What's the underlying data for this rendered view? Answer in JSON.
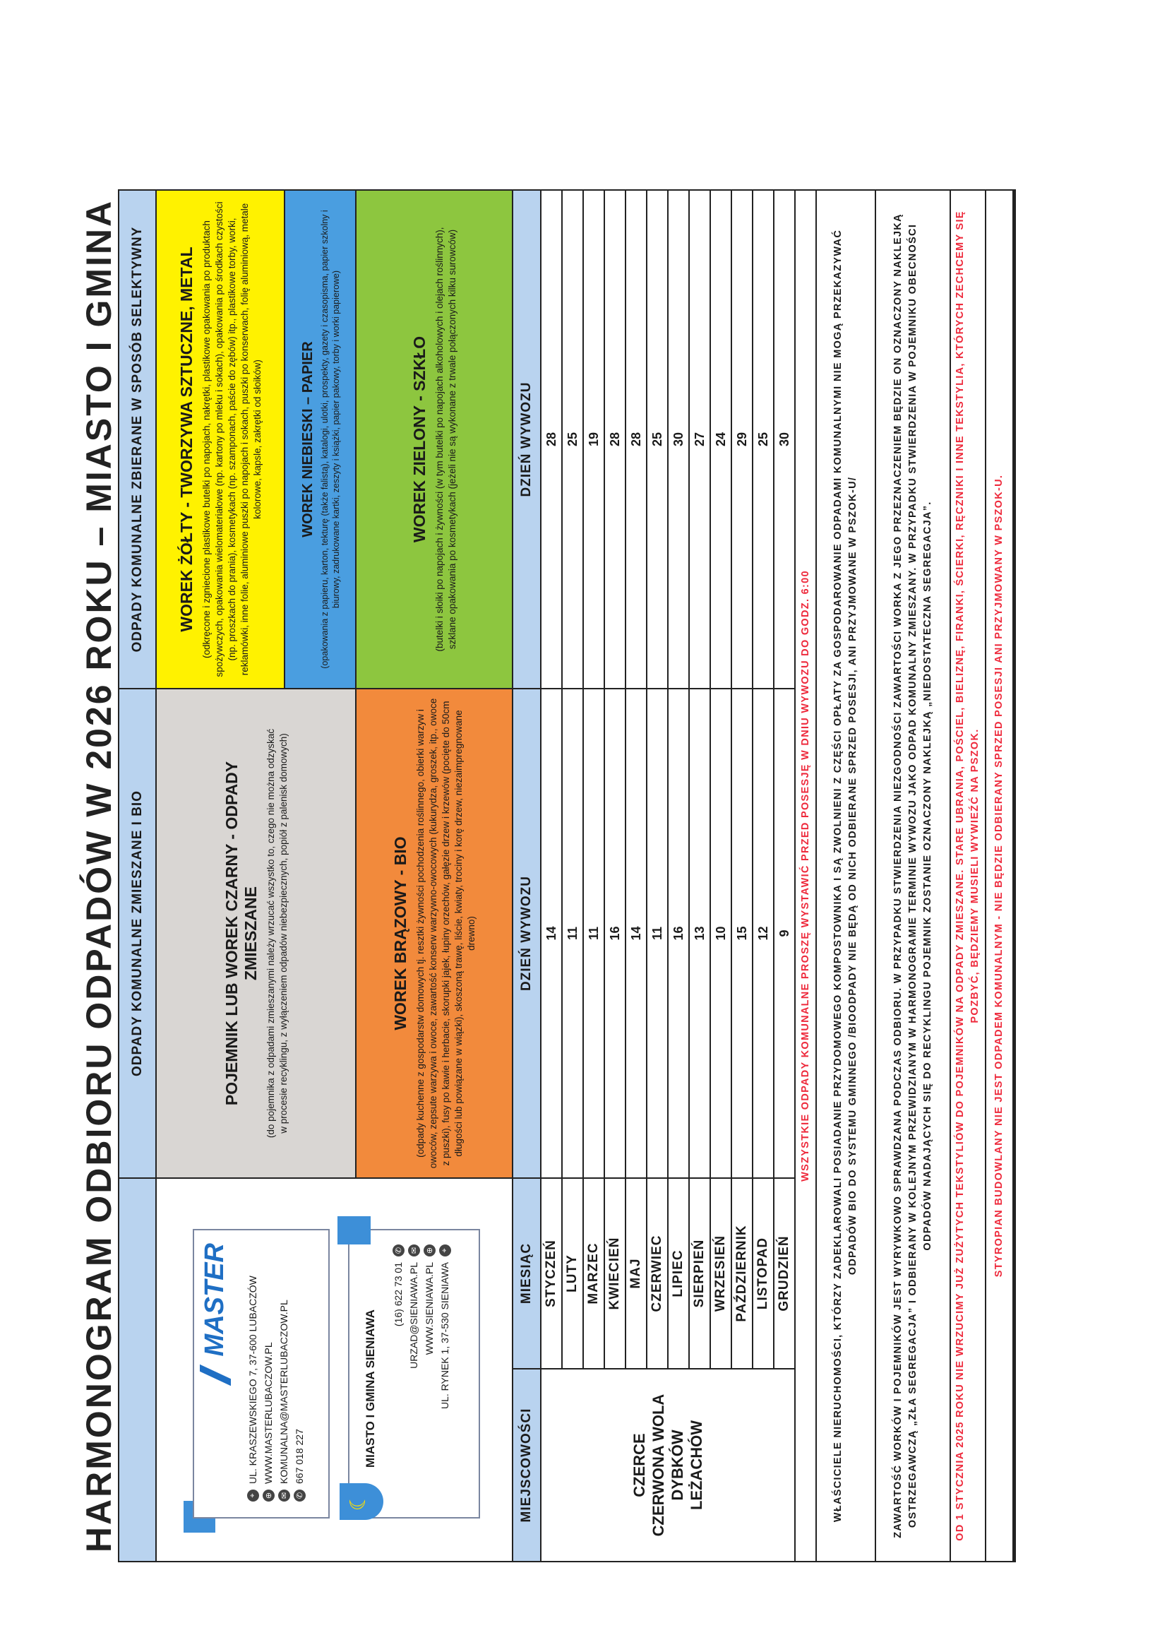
{
  "title": "HARMONOGRAM ODBIORU ODPADÓW W 2026 ROKU – MIASTO I GMINA SIENIAWA",
  "colors": {
    "header": "#b9d3ef",
    "mixed": "#d9d6d3",
    "bio": "#f28a3c",
    "plastic": "#fff200",
    "paper": "#4a9ee0",
    "glass": "#8dc63f",
    "warning": "#ee2a3c"
  },
  "header": {
    "mixed_bio": "ODPADY KOMUNALNE ZMIESZANE I BIO",
    "selective": "ODPADY KOMUNALNE ZBIERANE W SPOSÓB SELEKTYWNY"
  },
  "master": {
    "logo": "MASTER",
    "address": "UL. KRASZEWSKIEGO 7, 37-600 LUBACZÓW",
    "website": "WWW.MASTERLUBACZOW.PL",
    "email": "KOMUNALNA@MASTERLUBACZOW.PL",
    "phone": "667 018 227"
  },
  "municipality": {
    "name": "MIASTO I GMINA SIENIAWA",
    "phone": "(16) 622 73 01",
    "email": "URZAD@SIENIAWA.PL",
    "website": "WWW.SIENIAWA.PL",
    "address": "UL. RYNEK 1, 37-530 SIENIAWA"
  },
  "bins": {
    "mixed": {
      "title": "POJEMNIK LUB WOREK CZARNY - ODPADY ZMIESZANE",
      "desc": "(do pojemnika z odpadami zmieszanymi należy wrzucać wszystko to, czego nie można odzyskać w procesie recyklingu, z wyłączeniem odpadów niebezpiecznych, popiół z palenisk domowych)"
    },
    "bio": {
      "title": "WOREK BRĄZOWY - BIO",
      "desc": "(odpady kuchenne z gospodarstw domowych tj. resztki żywności pochodzenia roślinnego, obierki warzyw i owoców, zepsute warzywa i owoce, zawartość konserw warzywno-owocowych (kukurydza, groszek, itp., owoce z puszki), fusy po kawie i herbacie, skorupki jajek, łupiny orzechów, gałęzie drzew i krzewów (pocięte do 50cm długości lub powiązane w wiązki), skoszoną trawę, liście, kwiaty, trociny i korę drzew, niezaimpregnowane drewno)"
    },
    "plastic": {
      "title": "WOREK ŻÓŁTY - TWORZYWA SZTUCZNE, METAL",
      "desc": "(odkręcone i zgniecione plastikowe butelki po napojach, nakrętki, plastikowe opakowania po produktach spożywczych, opakowania wielomateriałowe (np. kartony po mleku i sokach), opakowania po środkach czystości (np. proszkach do prania), kosmetykach (np. szamponach, paście do zębów) itp., plastikowe torby, worki, reklamówki, inne folie, aluminiowe puszki po napojach i sokach, puszki po konserwach, folię aluminiową, metale kolorowe, kapsle, zakrętki od słoików)"
    },
    "paper": {
      "title": "WOREK NIEBIESKI – PAPIER",
      "desc": "(opakowania z papieru, karton, tekturę (także falistą), katalogi, ulotki, prospekty, gazety i czasopisma, papier szkolny i biurowy, zadrukowane kartki, zeszyty i książki, papier pakowy, torby i worki papierowe)"
    },
    "glass": {
      "title": "WOREK ZIELONY - SZKŁO",
      "desc": "(butelki i słoiki po napojach i żywności (w tym butelki po napojach alkoholowych i olejach roślinnych), szklane opakowania po kosmetykach (jeżeli nie są wykonane z trwale połączonych kilku surowców)"
    }
  },
  "table": {
    "col_localities": "MIEJSCOWOŚCI",
    "col_month": "MIESIĄC",
    "col_day_mixed_bio": "DZIEŃ WYWOZU",
    "col_day_selective": "DZIEŃ WYWOZU",
    "localities": [
      "CZERCE",
      "CZERWONA WOLA",
      "DYBKÓW",
      "LEŻACHÓW"
    ],
    "rows": [
      {
        "month": "STYCZEŃ",
        "mixed_bio": "14",
        "selective": "28"
      },
      {
        "month": "LUTY",
        "mixed_bio": "11",
        "selective": "25"
      },
      {
        "month": "MARZEC",
        "mixed_bio": "11",
        "selective": "19"
      },
      {
        "month": "KWIECIEŃ",
        "mixed_bio": "16",
        "selective": "28"
      },
      {
        "month": "MAJ",
        "mixed_bio": "14",
        "selective": "28"
      },
      {
        "month": "CZERWIEC",
        "mixed_bio": "11",
        "selective": "25"
      },
      {
        "month": "LIPIEC",
        "mixed_bio": "16",
        "selective": "30"
      },
      {
        "month": "SIERPIEŃ",
        "mixed_bio": "13",
        "selective": "27"
      },
      {
        "month": "WRZESIEŃ",
        "mixed_bio": "10",
        "selective": "24"
      },
      {
        "month": "PAŹDZIERNIK",
        "mixed_bio": "15",
        "selective": "29"
      },
      {
        "month": "LISTOPAD",
        "mixed_bio": "12",
        "selective": "25"
      },
      {
        "month": "GRUDZIEŃ",
        "mixed_bio": "9",
        "selective": "30"
      }
    ]
  },
  "notes": {
    "time": "WSZYSTKIE ODPADY KOMUNALNE PROSZĘ WYSTAWIĆ PRZED POSESJĘ W DNIU WYWOZU DO GODZ. 6:00",
    "composters": "WŁAŚCICIELE NIERUCHOMOŚCI, KTÓRZY ZADEKLAROWALI POSIADANIE PRZYDOMOWEGO KOMPOSTOWNIKA I SĄ ZWOLNIENI Z CZĘŚCI OPŁATY ZA GOSPODAROWANIE ODPADAMI KOMUNALNYMI NIE MOGĄ PRZEKAZYWAĆ ODPADÓW BIO DO SYSTEMU GMINNEGO /BIOODPADY NIE BĘDĄ OD NICH ODBIERANE SPRZED POSESJI, ANI PRZYJMOWANE W PSZOK-U/",
    "inspection": "ZAWARTOŚĆ WORKÓW I POJEMNIKÓW JEST WYRYWKOWO SPRAWDZANA PODCZAS ODBIORU. W PRZYPADKU STWIERDZENIA NIEZGODNOŚCI ZAWARTOŚCI WORKA Z JEGO PRZEZNACZENIEM BĘDZIE ON OZNACZONY NAKLEJKĄ OSTRZEGAWCZĄ „ZŁA SEGREGACJA” I ODBIERANY W KOLEJNYM PRZEWIDZIANYM W HARMONOGRAMIE TERMINIE WYWOZU JAKO ODPAD KOMUNALNY ZMIESZANY. W PRZYPADKU STWIERDZENIA W POJEMNIKU OBECNOŚCI ODPADÓW NADAJĄCYCH SIĘ DO RECYKLINGU POJEMNIK ZOSTANIE OZNACZONY NAKLEJKĄ „NIEDOSTATECZNA SEGREGACJA”.",
    "textiles": "OD 1 STYCZNIA 2025 ROKU NIE WRZUCIMY JUŻ ZUŻYTYCH TEKSTYLIÓW DO POJEMNIKÓW NA ODPADY ZMIESZANE. STARE UBRANIA, POŚCIEL, BIELIZNĘ, FIRANKI, ŚCIERKI, RĘCZNIKI I INNE TEKSTYLIA, KTÓRYCH ZECHCEMY SIĘ POZBYĆ, BĘDZIEMY MUSIELI WYWIEŹĆ NA PSZOK.",
    "styrofoam": "STYROPIAN BUDOWLANY NIE JEST ODPADEM KOMUNALNYM - NIE BĘDZIE ODBIERANY SPRZED POSESJI ANI PRZYJMOWANY W PSZOK-U."
  }
}
